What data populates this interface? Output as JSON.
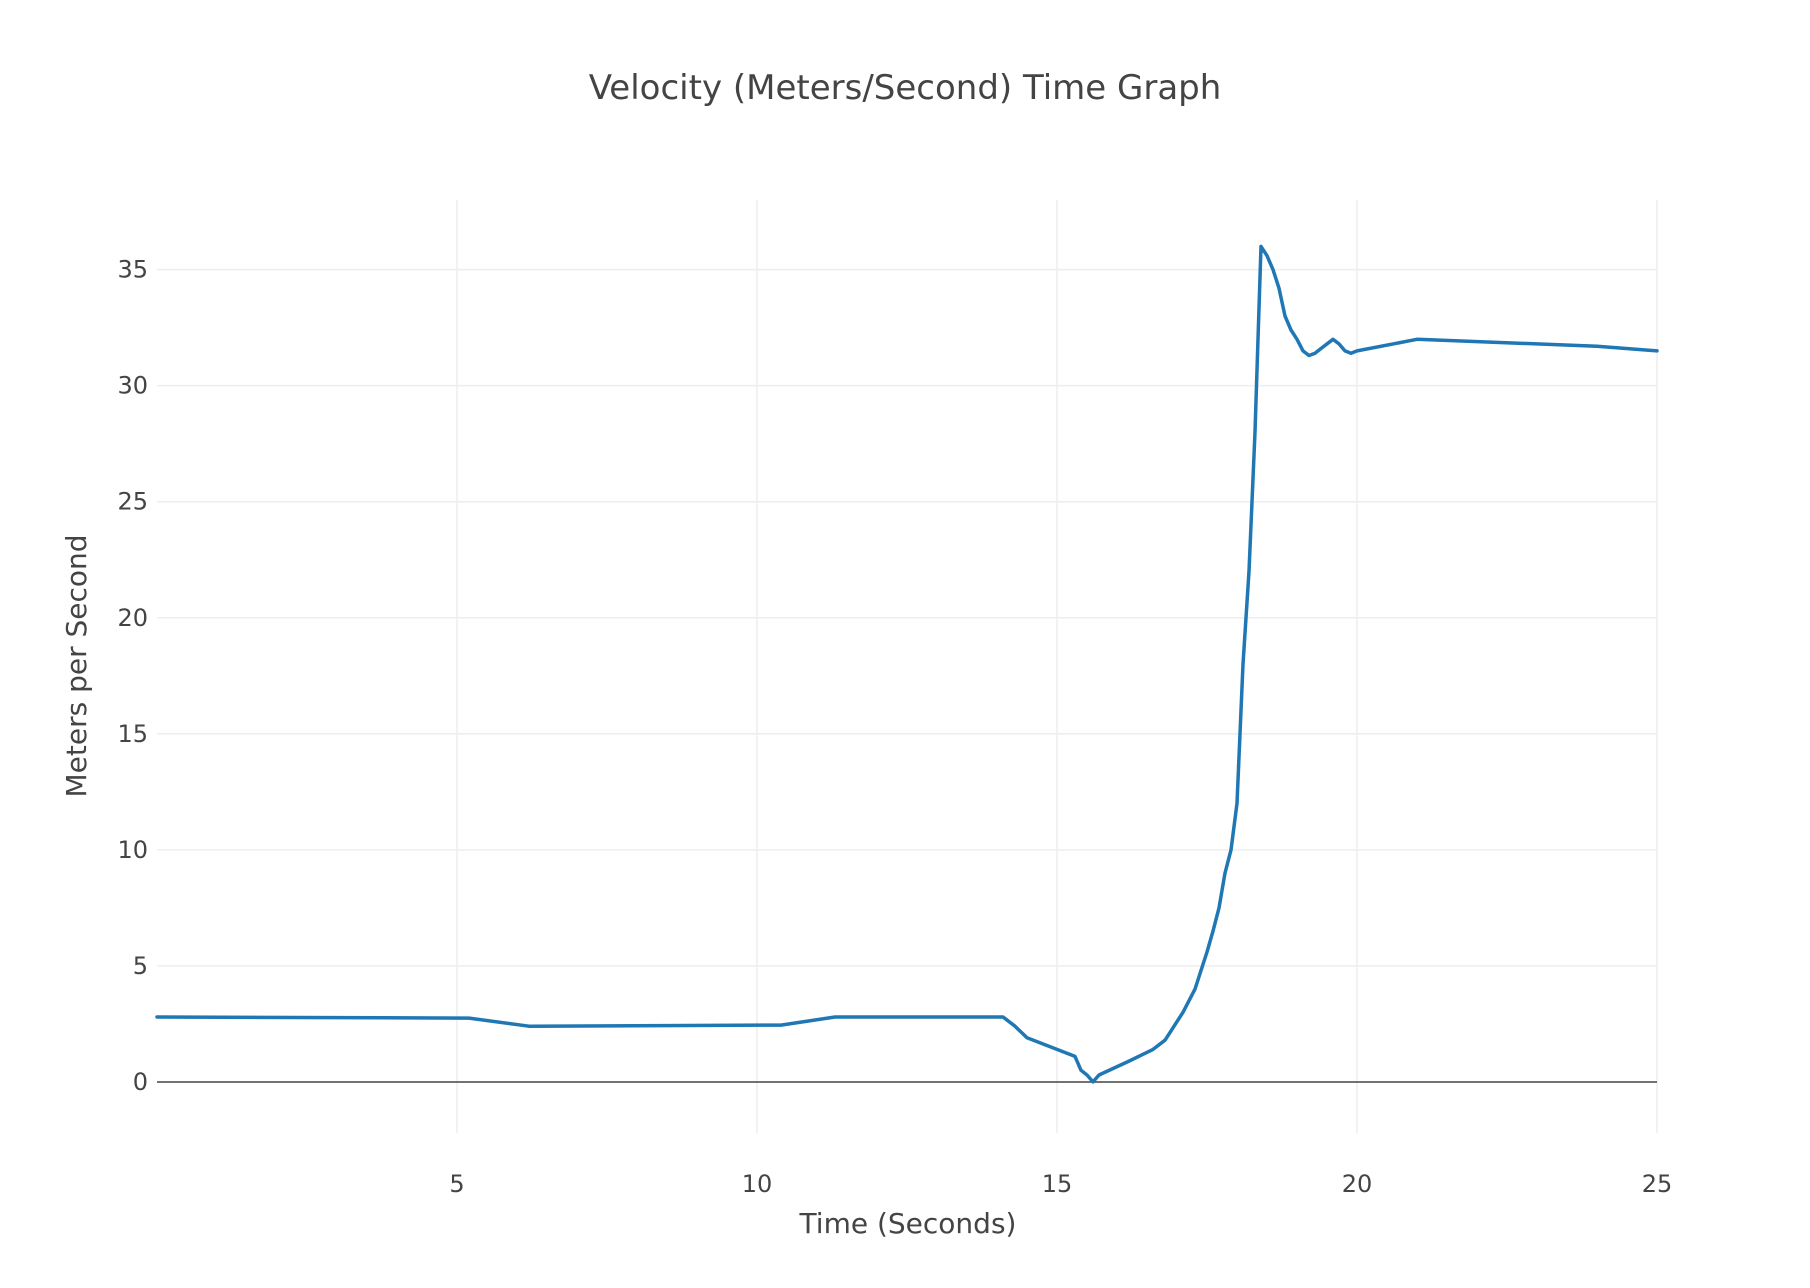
{
  "chart_data": {
    "type": "line",
    "title": "Velocity (Meters/Second) Time Graph",
    "xlabel": "Time (Seconds)",
    "ylabel": "Meters per Second",
    "xlim": [
      0,
      25
    ],
    "ylim": [
      -2.2,
      38
    ],
    "x_ticks": [
      5,
      10,
      15,
      20,
      25
    ],
    "x_tick_labels": [
      "5",
      "10",
      "15",
      "20",
      "25"
    ],
    "y_ticks": [
      0,
      5,
      10,
      15,
      20,
      25,
      30,
      35
    ],
    "y_tick_labels": [
      "0",
      "5",
      "10",
      "15",
      "20",
      "25",
      "30",
      "35"
    ],
    "grid": true,
    "series": [
      {
        "color": "#1f77b4",
        "x": [
          0.0,
          5.2,
          6.2,
          10.4,
          11.3,
          14.1,
          14.3,
          14.5,
          15.3,
          15.4,
          15.5,
          15.6,
          15.7,
          16.2,
          16.6,
          16.8,
          16.9,
          17.0,
          17.1,
          17.2,
          17.3,
          17.4,
          17.5,
          17.6,
          17.7,
          17.8,
          17.9,
          18.0,
          18.1,
          18.2,
          18.3,
          18.4,
          18.5,
          18.6,
          18.7,
          18.8,
          18.9,
          19.0,
          19.1,
          19.2,
          19.3,
          19.4,
          19.6,
          19.7,
          19.8,
          19.9,
          20.0,
          21.0,
          24.0,
          25.0
        ],
        "y": [
          2.8,
          2.75,
          2.4,
          2.45,
          2.8,
          2.8,
          2.4,
          1.9,
          1.1,
          0.5,
          0.3,
          0.0,
          0.3,
          0.9,
          1.4,
          1.8,
          2.2,
          2.6,
          3.0,
          3.5,
          4.0,
          4.8,
          5.6,
          6.5,
          7.5,
          9.0,
          10.0,
          12.0,
          18.0,
          22.0,
          28.0,
          36.0,
          35.6,
          35.0,
          34.2,
          33.0,
          32.4,
          32.0,
          31.5,
          31.3,
          31.4,
          31.6,
          32.0,
          31.8,
          31.5,
          31.4,
          31.5,
          32.0,
          31.7,
          31.5
        ]
      }
    ]
  }
}
